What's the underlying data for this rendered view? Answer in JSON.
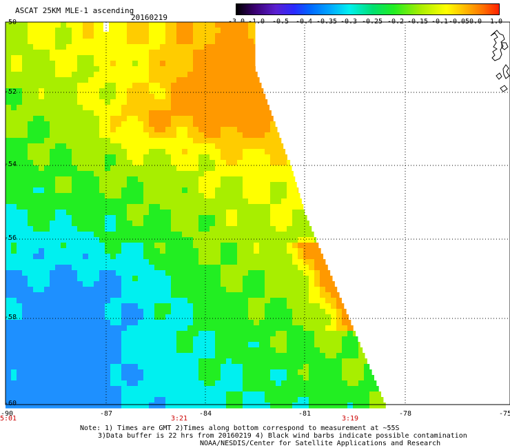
{
  "header": {
    "product": "ASCAT 25KM MLE-1 ascending",
    "date": "20160219"
  },
  "colorbar": {
    "labels": [
      "-3.0",
      "-1.0",
      "-0.5",
      "-0.4",
      "-0.35",
      "-0.3",
      "-0.25",
      "-0.2",
      "-0.15",
      "-0.1",
      "-0.05",
      "0.0",
      "1.0"
    ],
    "colors": [
      "#000000",
      "#3a0070",
      "#5a1fd0",
      "#2a2aff",
      "#0066ff",
      "#00aaff",
      "#00f0f0",
      "#00e070",
      "#22ee22",
      "#a8ee00",
      "#ffff00",
      "#ffb000",
      "#ff7000",
      "#ff2000"
    ]
  },
  "axes": {
    "lat_labels": [
      "-50",
      "-52",
      "-54",
      "-56",
      "-58",
      "-60"
    ],
    "lon_labels": [
      "-90",
      "-87",
      "-84",
      "-81",
      "-78",
      "-75"
    ]
  },
  "times": [
    "5:01",
    "3:21",
    "3:19"
  ],
  "notes": [
    "Note: 1) Times are GMT 2)Times along bottom correspond to measurement at ~55S",
    "3)Data buffer is 22 hrs from 20160219 4) Black wind barbs indicate possible contamination",
    "NOAA/NESDIS/Center for Satellite Applications and Research"
  ],
  "map_colors": {
    "cyan": "#00f0f0",
    "blue": "#1e90ff",
    "green": "#22ee22",
    "yellow": "#ffff00",
    "orange": "#ff9900",
    "frame": "#000000"
  }
}
